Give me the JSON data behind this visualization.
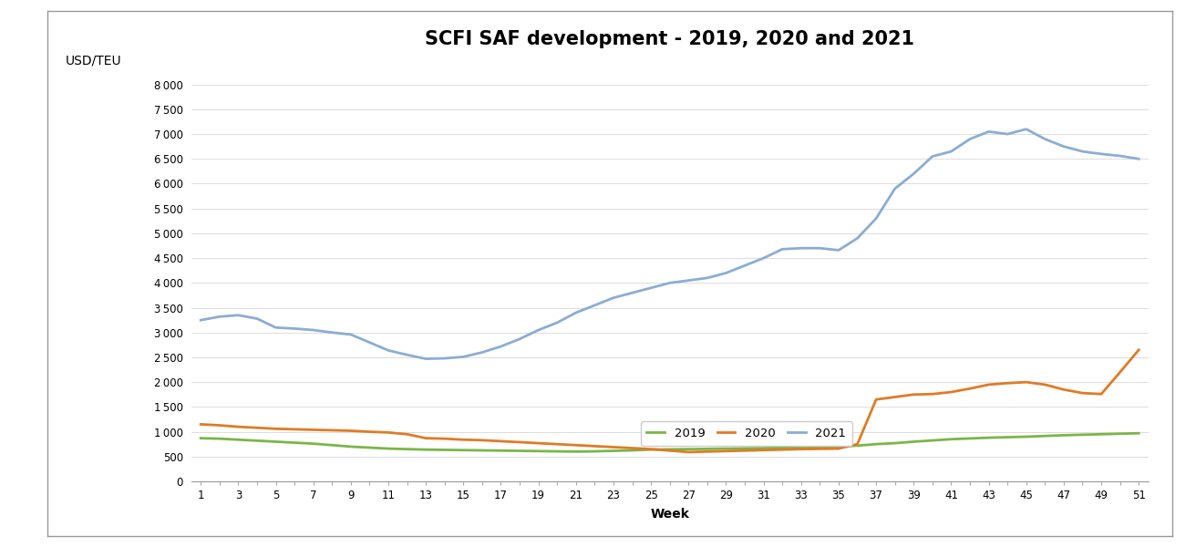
{
  "title": "SCFI SAF development - 2019, 2020 and 2021",
  "ylabel": "USD/TEU",
  "xlabel": "Week",
  "weeks": [
    1,
    2,
    3,
    4,
    5,
    6,
    7,
    8,
    9,
    10,
    11,
    12,
    13,
    14,
    15,
    16,
    17,
    18,
    19,
    20,
    21,
    22,
    23,
    24,
    25,
    26,
    27,
    28,
    29,
    30,
    31,
    32,
    33,
    34,
    35,
    36,
    37,
    38,
    39,
    40,
    41,
    42,
    43,
    44,
    45,
    46,
    47,
    48,
    49,
    50,
    51
  ],
  "xtick_labels": [
    "1",
    "",
    "3",
    "",
    "5",
    "",
    "7",
    "",
    "9",
    "",
    "11",
    "",
    "13",
    "",
    "15",
    "",
    "17",
    "",
    "19",
    "",
    "21",
    "",
    "23",
    "",
    "25",
    "",
    "27",
    "",
    "29",
    "",
    "31",
    "",
    "33",
    "",
    "35",
    "",
    "37",
    "",
    "39",
    "",
    "41",
    "",
    "43",
    "",
    "45",
    "",
    "47",
    "",
    "49",
    "",
    "51"
  ],
  "y2019": [
    870,
    860,
    840,
    820,
    800,
    780,
    760,
    730,
    700,
    680,
    660,
    650,
    640,
    635,
    630,
    625,
    620,
    615,
    610,
    605,
    600,
    605,
    615,
    625,
    640,
    645,
    650,
    655,
    660,
    665,
    670,
    675,
    680,
    690,
    700,
    720,
    750,
    770,
    800,
    825,
    850,
    865,
    880,
    890,
    900,
    915,
    930,
    940,
    950,
    960,
    970
  ],
  "y2020": [
    1150,
    1130,
    1100,
    1080,
    1060,
    1050,
    1040,
    1030,
    1020,
    1000,
    985,
    950,
    870,
    860,
    840,
    830,
    810,
    790,
    770,
    750,
    730,
    710,
    690,
    670,
    650,
    620,
    590,
    600,
    610,
    620,
    630,
    640,
    650,
    655,
    660,
    750,
    1650,
    1700,
    1750,
    1760,
    1800,
    1870,
    1950,
    1980,
    2000,
    1950,
    1850,
    1780,
    1760,
    2200,
    2650
  ],
  "y2021": [
    3250,
    3320,
    3350,
    3280,
    3100,
    3080,
    3050,
    3000,
    2960,
    2800,
    2640,
    2550,
    2470,
    2480,
    2510,
    2600,
    2720,
    2870,
    3050,
    3200,
    3400,
    3550,
    3700,
    3800,
    3900,
    4000,
    4050,
    4100,
    4200,
    4350,
    4500,
    4680,
    4700,
    4700,
    4660,
    4900,
    5300,
    5900,
    6200,
    6550,
    6650,
    6900,
    7050,
    7000,
    7100,
    6900,
    6750,
    6650,
    6600,
    6560,
    6500
  ],
  "color_2019": "#7ab648",
  "color_2020": "#e07b25",
  "color_2021": "#8badd3",
  "legend_labels": [
    "2019",
    "2020",
    "2021"
  ],
  "yticks": [
    0,
    500,
    1000,
    1500,
    2000,
    2500,
    3000,
    3500,
    4000,
    4500,
    5000,
    5500,
    6000,
    6500,
    7000,
    7500,
    8000
  ],
  "ylim": [
    0,
    8600
  ],
  "title_fontsize": 15,
  "axis_label_fontsize": 10,
  "tick_fontsize": 8.5,
  "legend_fontsize": 9.5,
  "line_width": 2.0
}
